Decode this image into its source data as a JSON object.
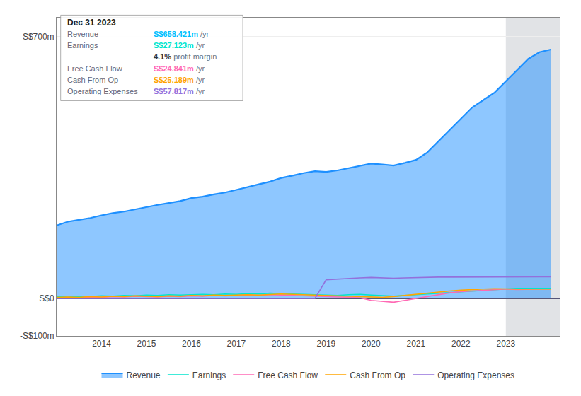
{
  "chart_data": {
    "type": "line",
    "x": [
      2013.0,
      2013.25,
      2013.5,
      2013.75,
      2014.0,
      2014.25,
      2014.5,
      2014.75,
      2015.0,
      2015.25,
      2015.5,
      2015.75,
      2016.0,
      2016.25,
      2016.5,
      2016.75,
      2017.0,
      2017.25,
      2017.5,
      2017.75,
      2018.0,
      2018.25,
      2018.5,
      2018.75,
      2019.0,
      2019.25,
      2019.5,
      2019.75,
      2020.0,
      2020.25,
      2020.5,
      2020.75,
      2021.0,
      2021.25,
      2021.5,
      2021.75,
      2022.0,
      2022.25,
      2022.5,
      2022.75,
      2023.0,
      2023.25,
      2023.5,
      2023.75,
      2024.0
    ],
    "series": [
      {
        "name": "Revenue",
        "color": "#1e90ff",
        "type": "area",
        "values": [
          195,
          205,
          210,
          215,
          222,
          228,
          232,
          238,
          245,
          250,
          255,
          260,
          268,
          272,
          278,
          283,
          290,
          298,
          305,
          312,
          322,
          328,
          335,
          340,
          338,
          342,
          348,
          355,
          360,
          358,
          355,
          362,
          370,
          390,
          420,
          450,
          480,
          510,
          530,
          550,
          580,
          610,
          640,
          658,
          665
        ]
      },
      {
        "name": "Earnings",
        "color": "#00e5cc",
        "type": "line",
        "values": [
          5,
          4,
          6,
          5,
          7,
          6,
          8,
          7,
          9,
          8,
          10,
          9,
          10,
          11,
          10,
          12,
          11,
          13,
          12,
          14,
          13,
          12,
          11,
          10,
          9,
          8,
          10,
          11,
          9,
          7,
          6,
          8,
          10,
          12,
          14,
          16,
          18,
          20,
          22,
          24,
          26,
          27,
          27,
          27,
          27
        ]
      },
      {
        "name": "Free Cash Flow",
        "color": "#ff69b4",
        "type": "line",
        "values": [
          2,
          3,
          2,
          4,
          3,
          5,
          4,
          6,
          5,
          4,
          6,
          5,
          7,
          6,
          8,
          7,
          8,
          9,
          8,
          10,
          9,
          8,
          7,
          6,
          5,
          4,
          3,
          2,
          -5,
          -8,
          -10,
          -5,
          0,
          5,
          10,
          15,
          18,
          20,
          22,
          24,
          25,
          24,
          25,
          25,
          25
        ]
      },
      {
        "name": "Cash From Op",
        "color": "#ffa500",
        "type": "line",
        "values": [
          3,
          4,
          3,
          5,
          4,
          6,
          5,
          7,
          6,
          5,
          7,
          6,
          8,
          7,
          9,
          8,
          9,
          10,
          9,
          11,
          12,
          11,
          10,
          9,
          8,
          7,
          6,
          5,
          4,
          3,
          5,
          8,
          12,
          15,
          18,
          20,
          22,
          24,
          25,
          26,
          25,
          25,
          25,
          25,
          25
        ]
      },
      {
        "name": "Operating Expenses",
        "color": "#9370db",
        "type": "line",
        "values": [
          0,
          0,
          0,
          0,
          0,
          0,
          0,
          0,
          0,
          0,
          0,
          0,
          0,
          0,
          0,
          0,
          0,
          0,
          0,
          0,
          0,
          0,
          0,
          0,
          50,
          52,
          54,
          55,
          56,
          55,
          54,
          55,
          56,
          57,
          57,
          57,
          57,
          58,
          58,
          58,
          58,
          58,
          58,
          58,
          58
        ]
      }
    ],
    "xlim": [
      2013,
      2024.2
    ],
    "xticks": [
      2014,
      2015,
      2016,
      2017,
      2018,
      2019,
      2020,
      2021,
      2022,
      2023
    ],
    "ylim": [
      -100,
      750
    ],
    "yticks": [
      {
        "value": -100,
        "label": "-S$100m"
      },
      {
        "value": 0,
        "label": "S$0"
      },
      {
        "value": 700,
        "label": "S$700m"
      }
    ],
    "grid": "y",
    "legend": "bottom",
    "highlight": [
      2023,
      2024.2
    ],
    "annotations": [
      {
        "label": "Dec 31 2023"
      },
      {
        "label": "Revenue",
        "value": "S$658.421m",
        "unit": "/yr",
        "color": "#00bfff"
      },
      {
        "label": "Earnings",
        "value": "S$27.123m",
        "unit": "/yr",
        "color": "#00e5cc"
      },
      {
        "value": "4.1%",
        "unit": "profit margin"
      },
      {
        "label": "Free Cash Flow",
        "value": "S$24.841m",
        "unit": "/yr",
        "color": "#ff69b4"
      },
      {
        "label": "Cash From Op",
        "value": "S$25.189m",
        "unit": "/yr",
        "color": "#ffa500"
      },
      {
        "label": "Operating Expenses",
        "value": "S$57.817m",
        "unit": "/yr",
        "color": "#9370db"
      }
    ]
  }
}
